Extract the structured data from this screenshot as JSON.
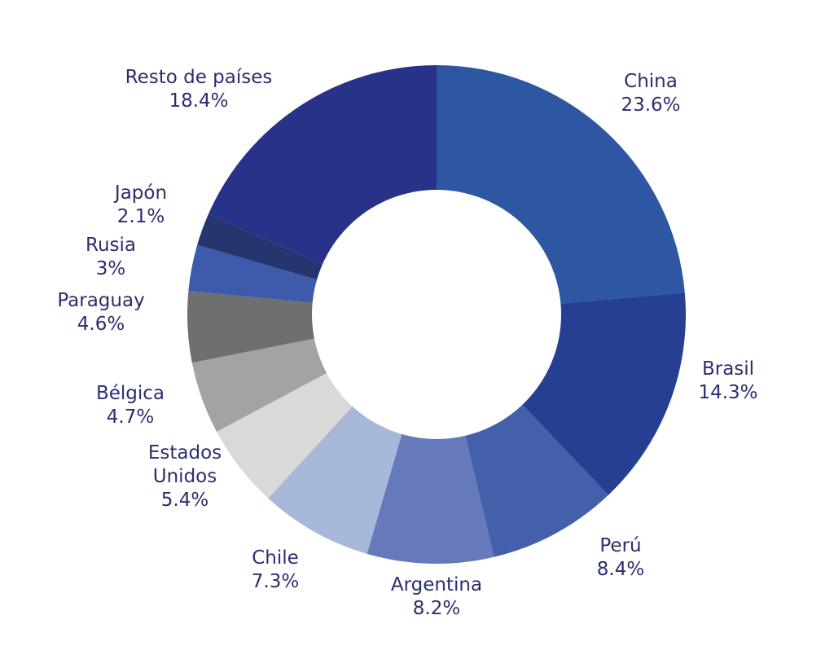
{
  "chart_data": {
    "type": "pie",
    "variant": "donut",
    "title": "",
    "start": "top",
    "direction": "clockwise",
    "slices": [
      {
        "label": [
          "China"
        ],
        "value_label": "23.6%",
        "value": 23.6,
        "color": "#2d56a3"
      },
      {
        "label": [
          "Brasil"
        ],
        "value_label": "14.3%",
        "value": 14.3,
        "color": "#263f93"
      },
      {
        "label": [
          "Perú"
        ],
        "value_label": "8.4%",
        "value": 8.4,
        "color": "#4460aa"
      },
      {
        "label": [
          "Argentina"
        ],
        "value_label": "8.2%",
        "value": 8.2,
        "color": "#6679bb"
      },
      {
        "label": [
          "Chile"
        ],
        "value_label": "7.3%",
        "value": 7.3,
        "color": "#a7b8d9"
      },
      {
        "label": [
          "Estados",
          "Unidos"
        ],
        "value_label": "5.4%",
        "value": 5.4,
        "color": "#d9d9d9"
      },
      {
        "label": [
          "Bélgica"
        ],
        "value_label": "4.7%",
        "value": 4.7,
        "color": "#a3a3a3"
      },
      {
        "label": [
          "Paraguay"
        ],
        "value_label": "4.6%",
        "value": 4.6,
        "color": "#6e6f6f"
      },
      {
        "label": [
          "Rusia"
        ],
        "value_label": "3%",
        "value": 3.0,
        "color": "#3d5baa"
      },
      {
        "label": [
          "Japón"
        ],
        "value_label": "2.1%",
        "value": 2.1,
        "color": "#26356d"
      },
      {
        "label": [
          "Resto de países"
        ],
        "value_label": "18.4%",
        "value": 18.4,
        "color": "#283289"
      }
    ]
  }
}
